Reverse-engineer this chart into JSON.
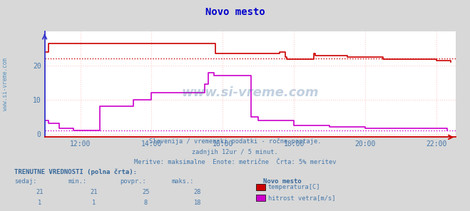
{
  "title": "Novo mesto",
  "bg_color": "#d8d8d8",
  "plot_bg_color": "#ffffff",
  "grid_color": "#ffcccc",
  "grid_style": ":",
  "xmin": 11.0,
  "xmax": 22.55,
  "ymin": -1,
  "ymax": 30,
  "xticks": [
    12,
    14,
    16,
    18,
    20,
    22
  ],
  "xlabels": [
    "12:00",
    "14:00",
    "16:00",
    "18:00",
    "20:00",
    "22:00"
  ],
  "yticks": [
    0,
    10,
    20
  ],
  "temp_color": "#cc0000",
  "wind_color": "#cc00cc",
  "temp_dashed_y": 22.2,
  "wind_dashed_y": 1.0,
  "subtitle1": "Slovenija / vremenski podatki - ročne postaje.",
  "subtitle2": "zadnjih 12ur / 5 minut.",
  "subtitle3": "Meritve: maksimalne  Enote: metrične  Črta: 5% meritev",
  "footer_title": "TRENUTNE VREDNOSTI (polna črta):",
  "col_headers": [
    "sedaj:",
    "min.:",
    "povpr.:",
    "maks.:"
  ],
  "row1_vals": [
    "21",
    "21",
    "25",
    "28"
  ],
  "row2_vals": [
    "1",
    "1",
    "8",
    "18"
  ],
  "legend_station": "Novo mesto",
  "legend_items": [
    "temperatura[C]",
    "hitrost vetra[m/s]"
  ],
  "legend_colors": [
    "#cc0000",
    "#cc00cc"
  ],
  "watermark": "www.si-vreme.com",
  "sidebar_text": "www.si-vreme.com",
  "temp_data": [
    [
      11.0,
      24.0
    ],
    [
      11.1,
      26.5
    ],
    [
      11.85,
      26.5
    ],
    [
      12.0,
      26.5
    ],
    [
      15.75,
      26.5
    ],
    [
      15.8,
      23.5
    ],
    [
      17.5,
      23.5
    ],
    [
      17.6,
      24.0
    ],
    [
      17.75,
      22.5
    ],
    [
      17.8,
      22.0
    ],
    [
      18.5,
      22.0
    ],
    [
      18.55,
      23.5
    ],
    [
      18.6,
      23.0
    ],
    [
      19.5,
      22.5
    ],
    [
      20.5,
      22.0
    ],
    [
      22.0,
      21.5
    ],
    [
      22.4,
      21.0
    ]
  ],
  "wind_data": [
    [
      11.0,
      4.0
    ],
    [
      11.1,
      3.0
    ],
    [
      11.4,
      1.5
    ],
    [
      11.8,
      1.0
    ],
    [
      12.5,
      1.0
    ],
    [
      12.55,
      8.0
    ],
    [
      13.5,
      10.0
    ],
    [
      14.0,
      12.0
    ],
    [
      15.5,
      14.5
    ],
    [
      15.6,
      18.0
    ],
    [
      15.75,
      17.0
    ],
    [
      16.0,
      17.0
    ],
    [
      16.8,
      5.0
    ],
    [
      17.0,
      4.0
    ],
    [
      18.0,
      2.5
    ],
    [
      19.0,
      2.0
    ],
    [
      20.0,
      1.5
    ],
    [
      22.0,
      1.5
    ],
    [
      22.3,
      1.0
    ]
  ]
}
